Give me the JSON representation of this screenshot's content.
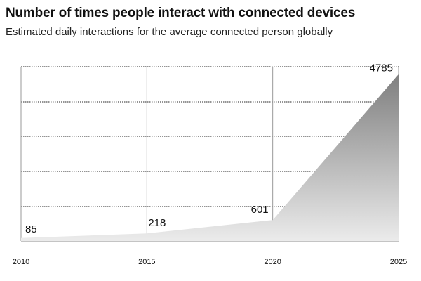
{
  "header": {
    "title": "Number of times people interact with connected devices",
    "subtitle": "Estimated daily interactions for the average connected person globally"
  },
  "chart_data": {
    "type": "area",
    "title": "Number of times people interact with connected devices",
    "subtitle": "Estimated daily interactions for the average connected person globally",
    "x": [
      2010,
      2015,
      2020,
      2025
    ],
    "xticks": [
      "2010",
      "2015",
      "2020",
      "2025"
    ],
    "series": [
      {
        "values": [
          85,
          218,
          601,
          4785
        ]
      }
    ],
    "data_labels": [
      "85",
      "218",
      "601",
      "4785"
    ],
    "xlim": [
      2010,
      2025
    ],
    "ylim": [
      0,
      5000
    ],
    "grid": "dotted horizontal, solid vertical",
    "fill_gradient": [
      "#7f7f7f",
      "#ebebeb"
    ]
  }
}
